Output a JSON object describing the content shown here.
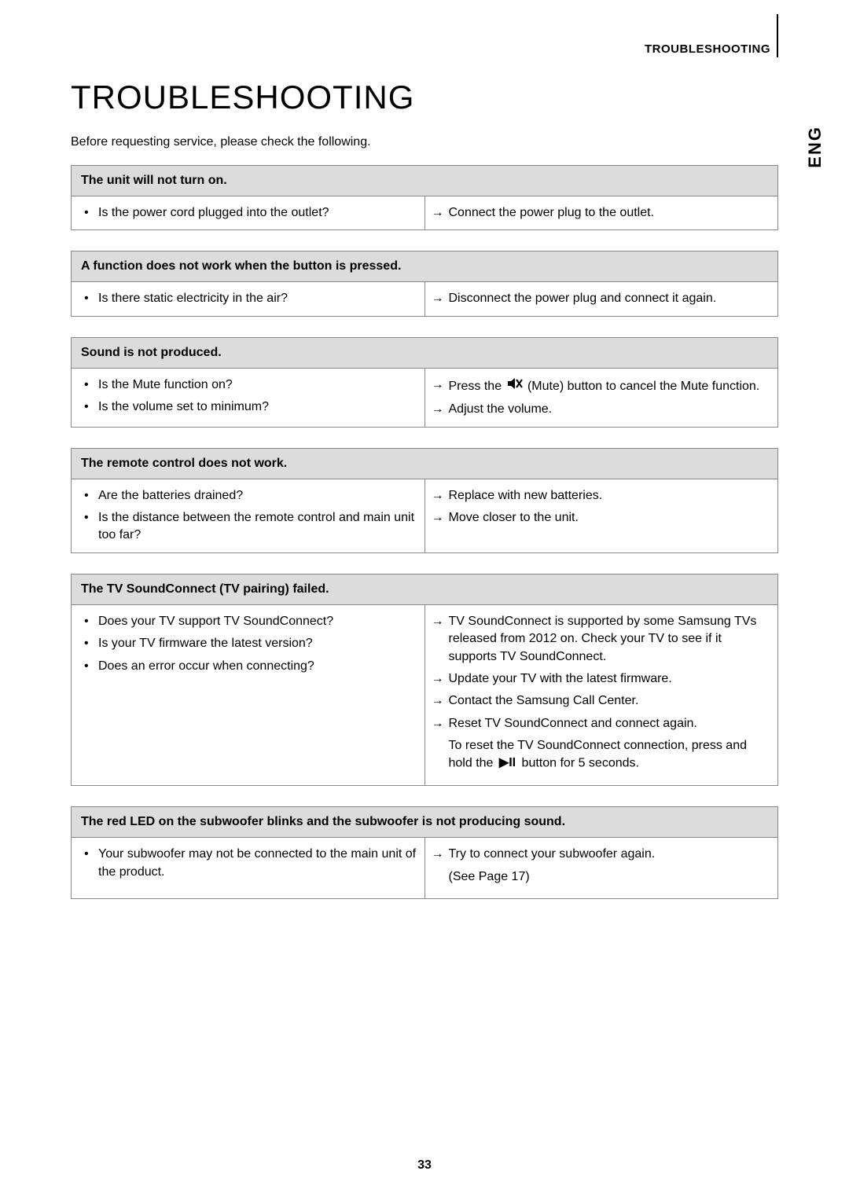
{
  "header": {
    "section_label": "TROUBLESHOOTING",
    "language": "ENG"
  },
  "title": "TROUBLESHOOTING",
  "intro": "Before requesting service, please check the following.",
  "page_number": "33",
  "tables": [
    {
      "heading": "The unit will not turn on.",
      "rows": [
        {
          "checks": [
            "Is the power cord plugged into the outlet?"
          ],
          "solutions": [
            {
              "type": "sol",
              "text": "Connect the power plug to the outlet."
            }
          ]
        }
      ]
    },
    {
      "heading": "A function does not work when the button is pressed.",
      "rows": [
        {
          "checks": [
            "Is there static electricity in the air?"
          ],
          "solutions": [
            {
              "type": "sol",
              "text": "Disconnect the power plug and connect it again."
            }
          ]
        }
      ]
    },
    {
      "heading": "Sound is not produced.",
      "rows": [
        {
          "checks": [
            "Is the Mute function on?",
            "Is the volume set to minimum?"
          ],
          "solutions": [
            {
              "type": "sol",
              "pre": "Press the ",
              "icon": "mute",
              "post": " (Mute) button to cancel the Mute function."
            },
            {
              "type": "sol",
              "text": "Adjust the volume."
            }
          ]
        }
      ]
    },
    {
      "heading": "The remote control does not work.",
      "rows": [
        {
          "checks": [
            "Are the batteries drained?",
            "Is the distance between the remote control and main unit too far?"
          ],
          "solutions": [
            {
              "type": "sol",
              "text": "Replace with new batteries."
            },
            {
              "type": "sol",
              "text": "Move closer to the unit."
            }
          ]
        }
      ]
    },
    {
      "heading": "The TV SoundConnect (TV pairing) failed.",
      "rows": [
        {
          "checks": [
            "Does your TV support TV SoundConnect?",
            "Is your TV firmware the latest version?",
            "Does an error occur when connecting?"
          ],
          "solutions": [
            {
              "type": "sol",
              "text": "TV SoundConnect is supported by some Samsung TVs released from 2012 on. Check your TV to see if it supports TV SoundConnect."
            },
            {
              "type": "sol",
              "text": "Update your TV with the latest firmware."
            },
            {
              "type": "sol",
              "text": "Contact the Samsung Call Center."
            },
            {
              "type": "sol",
              "text": "Reset TV SoundConnect and connect again."
            },
            {
              "type": "cont",
              "pre": "To reset the TV SoundConnect connection, press and hold the ",
              "icon": "playpause",
              "post": " button for 5 seconds."
            }
          ]
        }
      ]
    },
    {
      "heading": "The red LED on the subwoofer blinks and the subwoofer is not producing sound.",
      "rows": [
        {
          "checks": [
            "Your subwoofer may not be connected to the main unit of the product."
          ],
          "solutions": [
            {
              "type": "sol",
              "text": "Try to connect your subwoofer again."
            },
            {
              "type": "cont",
              "text": "(See Page 17)"
            }
          ]
        }
      ]
    }
  ]
}
